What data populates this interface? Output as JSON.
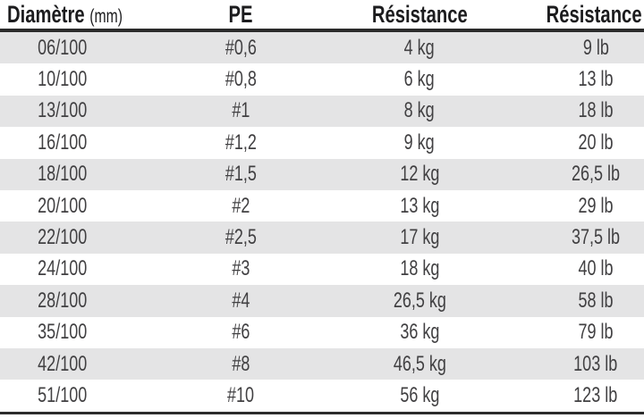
{
  "table": {
    "columns": [
      {
        "label": "Diamètre",
        "sublabel": "(mm)"
      },
      {
        "label": "PE"
      },
      {
        "label": "Résistance"
      },
      {
        "label": "Résistance"
      }
    ],
    "rows": [
      [
        "06/100",
        "#0,6",
        "4 kg",
        "9 lb"
      ],
      [
        "10/100",
        "#0,8",
        "6 kg",
        "13 lb"
      ],
      [
        "13/100",
        "#1",
        "8 kg",
        "18 lb"
      ],
      [
        "16/100",
        "#1,2",
        "9 kg",
        "20 lb"
      ],
      [
        "18/100",
        "#1,5",
        "12 kg",
        "26,5 lb"
      ],
      [
        "20/100",
        "#2",
        "13 kg",
        "29 lb"
      ],
      [
        "22/100",
        "#2,5",
        "17 kg",
        "37,5 lb"
      ],
      [
        "24/100",
        "#3",
        "18 kg",
        "40 lb"
      ],
      [
        "28/100",
        "#4",
        "26,5 kg",
        "58 lb"
      ],
      [
        "35/100",
        "#6",
        "36 kg",
        "79 lb"
      ],
      [
        "42/100",
        "#8",
        "46,5 kg",
        "103 lb"
      ],
      [
        "51/100",
        "#10",
        "56 kg",
        "123 lb"
      ]
    ]
  },
  "colors": {
    "stripe": "#e4e4e5",
    "rule": "#2b2b2b",
    "header_text": "#1c1c1e",
    "body_text": "#414042"
  },
  "chart_data": {
    "type": "table",
    "title": "",
    "columns": [
      "Diamètre (mm)",
      "PE",
      "Résistance",
      "Résistance"
    ],
    "categories": [
      "06/100",
      "10/100",
      "13/100",
      "16/100",
      "18/100",
      "20/100",
      "22/100",
      "24/100",
      "28/100",
      "35/100",
      "42/100",
      "51/100"
    ],
    "series": [
      {
        "name": "PE",
        "values": [
          0.6,
          0.8,
          1,
          1.2,
          1.5,
          2,
          2.5,
          3,
          4,
          6,
          8,
          10
        ]
      },
      {
        "name": "Résistance (kg)",
        "values": [
          4,
          6,
          8,
          9,
          12,
          13,
          17,
          18,
          26.5,
          36,
          46.5,
          56
        ]
      },
      {
        "name": "Résistance (lb)",
        "values": [
          9,
          13,
          18,
          20,
          26.5,
          29,
          37.5,
          40,
          58,
          79,
          103,
          123
        ]
      }
    ],
    "rows": [
      [
        "06/100",
        "#0,6",
        "4 kg",
        "9 lb"
      ],
      [
        "10/100",
        "#0,8",
        "6 kg",
        "13 lb"
      ],
      [
        "13/100",
        "#1",
        "8 kg",
        "18 lb"
      ],
      [
        "16/100",
        "#1,2",
        "9 kg",
        "20 lb"
      ],
      [
        "18/100",
        "#1,5",
        "12 kg",
        "26,5 lb"
      ],
      [
        "20/100",
        "#2",
        "13 kg",
        "29 lb"
      ],
      [
        "22/100",
        "#2,5",
        "17 kg",
        "37,5 lb"
      ],
      [
        "24/100",
        "#3",
        "18 kg",
        "40 lb"
      ],
      [
        "28/100",
        "#4",
        "26,5 kg",
        "58 lb"
      ],
      [
        "35/100",
        "#6",
        "36 kg",
        "79 lb"
      ],
      [
        "42/100",
        "#8",
        "46,5 kg",
        "103 lb"
      ],
      [
        "51/100",
        "#10",
        "56 kg",
        "123 lb"
      ]
    ],
    "layout": {
      "striped_rows": true,
      "stripe_start": "first-row",
      "header_rule": true,
      "bottom_rule": true
    }
  }
}
